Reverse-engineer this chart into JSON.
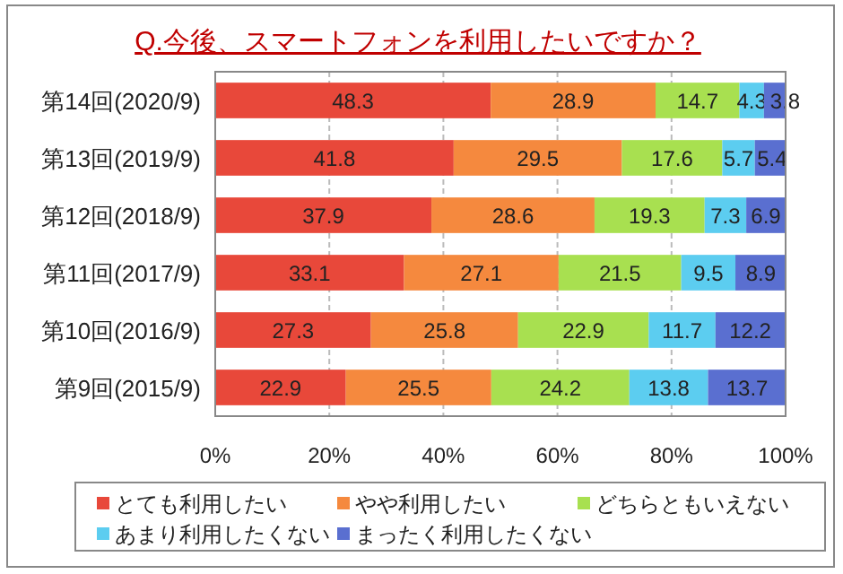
{
  "chart_data": {
    "type": "bar",
    "orientation": "horizontal",
    "stacked": true,
    "title": "Q.今後、スマートフォンを利用したいですか？",
    "categories": [
      "第14回(2020/9)",
      "第13回(2019/9)",
      "第12回(2018/9)",
      "第11回(2017/9)",
      "第10回(2016/9)",
      "第9回(2015/9)"
    ],
    "series": [
      {
        "name": "とても利用したい",
        "color": "#e8483a",
        "values": [
          48.3,
          41.8,
          37.9,
          33.1,
          27.3,
          22.9
        ]
      },
      {
        "name": "やや利用したい",
        "color": "#f5893e",
        "values": [
          28.9,
          29.5,
          28.6,
          27.1,
          25.8,
          25.5
        ]
      },
      {
        "name": "どちらともいえない",
        "color": "#a8e050",
        "values": [
          14.7,
          17.6,
          19.3,
          21.5,
          22.9,
          24.2
        ]
      },
      {
        "name": "あまり利用したくない",
        "color": "#5ccdf0",
        "values": [
          4.3,
          5.7,
          7.3,
          9.5,
          11.7,
          13.8
        ]
      },
      {
        "name": "まったく利用したくない",
        "color": "#5a6fd0",
        "values": [
          3.8,
          5.4,
          6.9,
          8.9,
          12.2,
          13.7
        ]
      }
    ],
    "xlim": [
      0,
      100
    ],
    "xticks": [
      {
        "value": 0,
        "label": "0%"
      },
      {
        "value": 20,
        "label": "20%"
      },
      {
        "value": 40,
        "label": "40%"
      },
      {
        "value": 60,
        "label": "60%"
      },
      {
        "value": 80,
        "label": "80%"
      },
      {
        "value": 100,
        "label": "100%"
      }
    ],
    "grid": "x",
    "legend": "bottom",
    "data_labels": true
  }
}
